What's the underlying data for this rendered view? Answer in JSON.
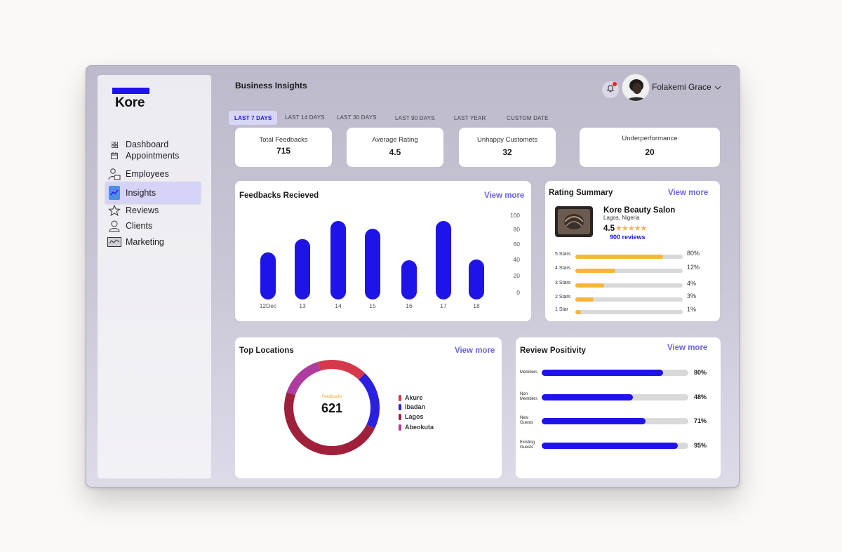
{
  "app": {
    "logo_text": "Kore",
    "brand_color": "#1f14e8",
    "accent_color": "#6a65df"
  },
  "sidebar": {
    "items": [
      {
        "label": "Dashboard",
        "icon": "grid-icon"
      },
      {
        "label": "Appointments",
        "icon": "calendar-icon"
      },
      {
        "label": "Employees",
        "icon": "employees-icon"
      },
      {
        "label": "Insights",
        "icon": "insights-icon",
        "active": true
      },
      {
        "label": "Reviews",
        "icon": "star-icon"
      },
      {
        "label": "Clients",
        "icon": "user-icon"
      },
      {
        "label": "Marketing",
        "icon": "marketing-icon"
      }
    ]
  },
  "header": {
    "title": "Business Insights",
    "user_name": "Folakemi Grace",
    "notification_dot": true
  },
  "tabs": [
    "LAST 7 DAYS",
    "LAST 14 DAYS",
    "LAST 30 DAYS",
    "LAST 90 DAYS",
    "LAST YEAR",
    "CUSTOM DATE"
  ],
  "stats": [
    {
      "label": "Total Feedbacks",
      "value": "715"
    },
    {
      "label": "Average Rating",
      "value": "4.5"
    },
    {
      "label": "Unhappy Customets",
      "value": "32"
    },
    {
      "label": "Underperformance",
      "value": "20"
    }
  ],
  "feedbacks": {
    "title": "Feedbacks Recieved",
    "view_more": "View more"
  },
  "chart_data": {
    "type": "bar",
    "categories": [
      "12Dec",
      "13",
      "14",
      "15",
      "16",
      "17",
      "18"
    ],
    "values": [
      60,
      77,
      100,
      90,
      50,
      100,
      51
    ],
    "yticks": [
      "100",
      "80",
      "60",
      "40",
      "20",
      "0"
    ],
    "ylim": [
      0,
      100
    ],
    "bar_color": "#1f14e8"
  },
  "rating_summary": {
    "title": "Rating Summary",
    "view_more": "View more",
    "business_name": "Kore Beauty Salon",
    "location": "Lagos, Nigeria",
    "rating": "4.5",
    "stars": "★★★★★",
    "reviews_label": "900 reviews",
    "rows": [
      {
        "label": "5 Stars",
        "pct": "80%",
        "fill": 0.82
      },
      {
        "label": "4 Stars",
        "pct": "12%",
        "fill": 0.37
      },
      {
        "label": "3 Stars",
        "pct": "4%",
        "fill": 0.27
      },
      {
        "label": "2 Stars",
        "pct": "3%",
        "fill": 0.17
      },
      {
        "label": "1 Star",
        "pct": "1%",
        "fill": 0.05
      }
    ]
  },
  "top_locations": {
    "title": "Top Locations",
    "view_more": "View more",
    "center_label": "Feedbacks",
    "center_value": "621",
    "segments": [
      {
        "name": "Akure",
        "color": "#d6384b",
        "share": 0.17
      },
      {
        "name": "Ibadan",
        "color": "#2b1fe0",
        "share": 0.2
      },
      {
        "name": "Lagos",
        "color": "#a01f3a",
        "share": 0.48
      },
      {
        "name": "Abeokuta",
        "color": "#b13ca0",
        "share": 0.15
      }
    ]
  },
  "review_positivity": {
    "title": "Review Positivity",
    "view_more": "View more",
    "rows": [
      {
        "label_lines": [
          "Members"
        ],
        "pct": "80%",
        "fill": 0.83
      },
      {
        "label_lines": [
          "Non",
          "Members"
        ],
        "pct": "48%",
        "fill": 0.62
      },
      {
        "label_lines": [
          "New",
          "Guests"
        ],
        "pct": "71%",
        "fill": 0.71
      },
      {
        "label_lines": [
          "Existing",
          "Guests"
        ],
        "pct": "95%",
        "fill": 0.93
      }
    ]
  }
}
